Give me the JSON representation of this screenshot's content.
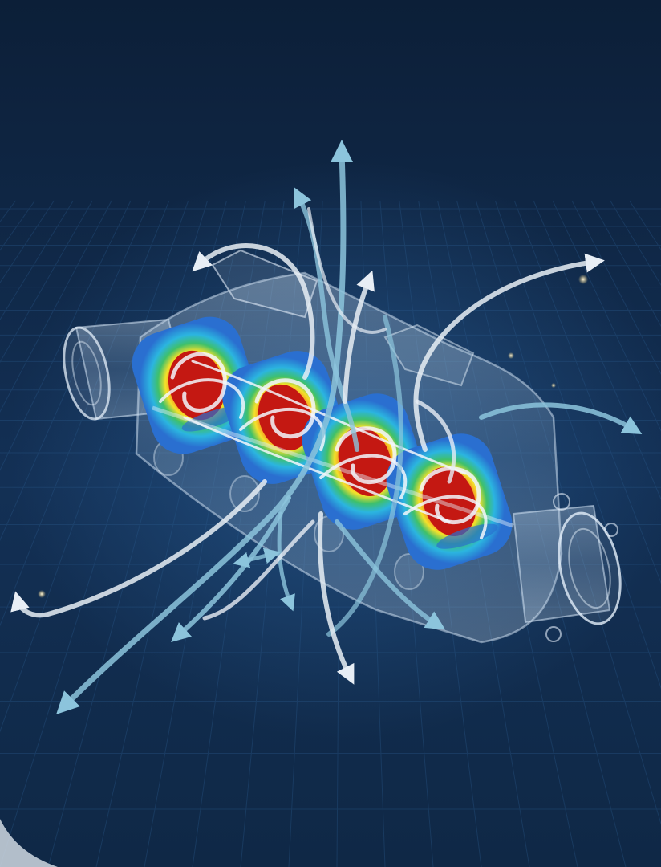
{
  "image": {
    "subject": "engine-manifold-flow-simulation",
    "colors": {
      "background_top": "#0c1f38",
      "background_mid": "#133055",
      "background_bottom": "#0f2846",
      "grid": "#2a5a8c",
      "housing": "#cfe2f3",
      "stream_white": "#e8eef5",
      "stream_blue": "#8cc4dc",
      "heat_red": "#d11c14",
      "heat_orange": "#f57c1f",
      "heat_yellow": "#f4e12a",
      "heat_green": "#3fc06a",
      "heat_cyan": "#2bb5e0",
      "heat_blue": "#2a6fd0",
      "sparkle": "#f3d27a"
    },
    "ports": 4
  }
}
